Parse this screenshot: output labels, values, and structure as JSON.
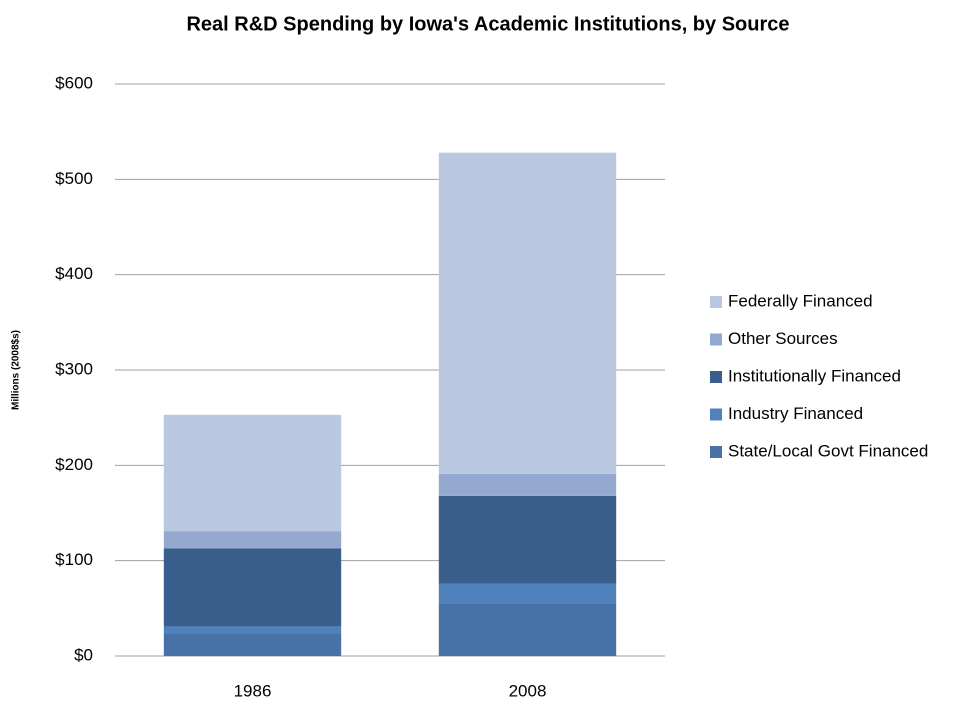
{
  "chart_data": {
    "type": "stacked-bar",
    "title": "Real R&D Spending by Iowa's Academic Institutions, by Source",
    "y_label": "Millions (2008$s)",
    "categories": [
      "1986",
      "2008"
    ],
    "series": [
      {
        "name": "State/Local Govt Financed",
        "color": "#4672a8",
        "values": [
          24,
          55
        ]
      },
      {
        "name": "Industry Financed",
        "color": "#4f81bd",
        "values": [
          7,
          21
        ]
      },
      {
        "name": "Institutionally Financed",
        "color": "#3a5e8c",
        "values": [
          82,
          92
        ]
      },
      {
        "name": "Other Sources",
        "color": "#95a8cf",
        "values": [
          18,
          23
        ]
      },
      {
        "name": "Federally Financed",
        "color": "#b9c7e0",
        "values": [
          122,
          337
        ]
      }
    ],
    "ylim": [
      0,
      600
    ],
    "yticks": [
      {
        "value": 0,
        "label": "$0"
      },
      {
        "value": 100,
        "label": "$100"
      },
      {
        "value": 200,
        "label": "$200"
      },
      {
        "value": 300,
        "label": "$300"
      },
      {
        "value": 400,
        "label": "$400"
      },
      {
        "value": 500,
        "label": "$500"
      },
      {
        "value": 600,
        "label": "$600"
      }
    ],
    "grid": true,
    "legend": "right"
  }
}
